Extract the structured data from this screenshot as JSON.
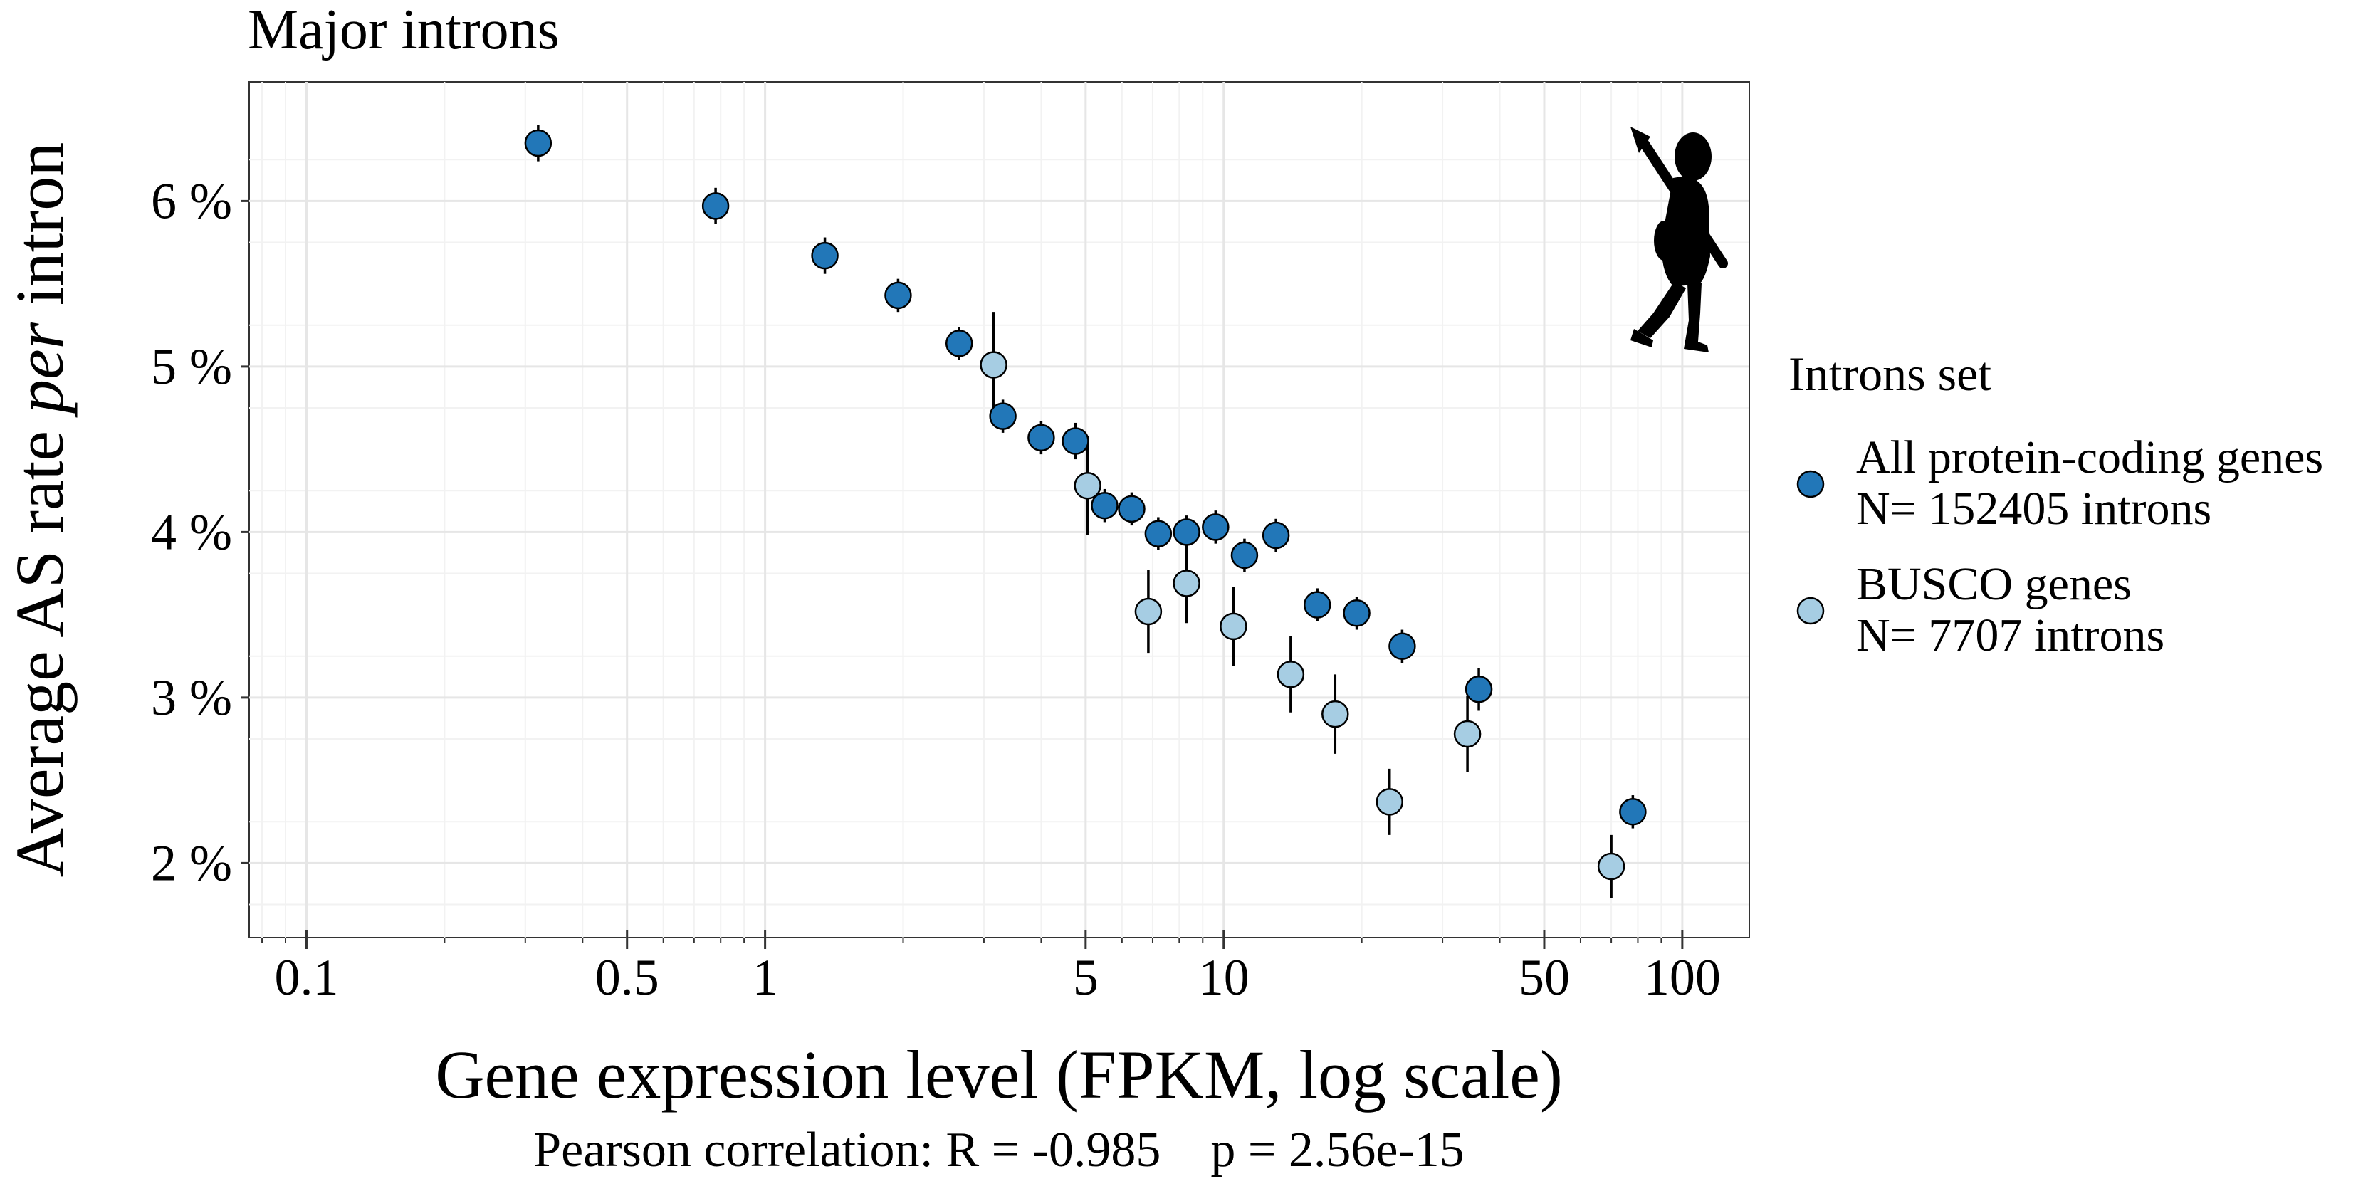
{
  "chart_data": {
    "type": "scatter",
    "title": "Major introns",
    "xlabel": "Gene expression level (FPKM, log scale)",
    "ylabel_parts": [
      "Average AS rate ",
      "per",
      " intron"
    ],
    "caption": "Pearson correlation: R = -0.985    p = 2.56e-15",
    "x_scale": "log10",
    "xlim": [
      0.075,
      140
    ],
    "ylim": [
      1.55,
      6.72
    ],
    "x_ticks": [
      {
        "value": 0.1,
        "label": "0.1"
      },
      {
        "value": 0.5,
        "label": "0.5"
      },
      {
        "value": 1,
        "label": "1"
      },
      {
        "value": 5,
        "label": "5"
      },
      {
        "value": 10,
        "label": "10"
      },
      {
        "value": 50,
        "label": "50"
      },
      {
        "value": 100,
        "label": "100"
      }
    ],
    "x_minor_ticks": [
      0.08,
      0.09,
      0.2,
      0.3,
      0.4,
      0.6,
      0.7,
      0.8,
      0.9,
      2,
      3,
      4,
      6,
      7,
      8,
      9,
      20,
      30,
      40,
      60,
      70,
      80,
      90
    ],
    "y_ticks": [
      {
        "value": 2,
        "label": "2 %"
      },
      {
        "value": 3,
        "label": "3 %"
      },
      {
        "value": 4,
        "label": "4 %"
      },
      {
        "value": 5,
        "label": "5 %"
      },
      {
        "value": 6,
        "label": "6 %"
      }
    ],
    "grid": true,
    "legend": {
      "title": "Introns set",
      "position": "right"
    },
    "series": [
      {
        "label_lines": [
          "All protein-coding genes",
          "N= 152405 introns"
        ],
        "color": "#2277b8",
        "points": [
          {
            "x": 0.32,
            "y": 6.35,
            "ylow": 6.24,
            "yhigh": 6.46
          },
          {
            "x": 0.78,
            "y": 5.97,
            "ylow": 5.86,
            "yhigh": 6.08
          },
          {
            "x": 1.35,
            "y": 5.67,
            "ylow": 5.56,
            "yhigh": 5.78
          },
          {
            "x": 1.95,
            "y": 5.43,
            "ylow": 5.33,
            "yhigh": 5.53
          },
          {
            "x": 2.65,
            "y": 5.14,
            "ylow": 5.04,
            "yhigh": 5.24
          },
          {
            "x": 3.3,
            "y": 4.7,
            "ylow": 4.6,
            "yhigh": 4.8
          },
          {
            "x": 4.0,
            "y": 4.57,
            "ylow": 4.47,
            "yhigh": 4.67
          },
          {
            "x": 4.75,
            "y": 4.55,
            "ylow": 4.44,
            "yhigh": 4.66
          },
          {
            "x": 5.5,
            "y": 4.16,
            "ylow": 4.06,
            "yhigh": 4.26
          },
          {
            "x": 6.3,
            "y": 4.14,
            "ylow": 4.04,
            "yhigh": 4.24
          },
          {
            "x": 7.2,
            "y": 3.99,
            "ylow": 3.89,
            "yhigh": 4.09
          },
          {
            "x": 8.3,
            "y": 4.0,
            "ylow": 3.9,
            "yhigh": 4.1
          },
          {
            "x": 9.6,
            "y": 4.03,
            "ylow": 3.93,
            "yhigh": 4.13
          },
          {
            "x": 11.1,
            "y": 3.86,
            "ylow": 3.76,
            "yhigh": 3.96
          },
          {
            "x": 13.0,
            "y": 3.98,
            "ylow": 3.88,
            "yhigh": 4.08
          },
          {
            "x": 16.0,
            "y": 3.56,
            "ylow": 3.46,
            "yhigh": 3.66
          },
          {
            "x": 19.5,
            "y": 3.51,
            "ylow": 3.41,
            "yhigh": 3.61
          },
          {
            "x": 24.5,
            "y": 3.31,
            "ylow": 3.21,
            "yhigh": 3.41
          },
          {
            "x": 36.0,
            "y": 3.05,
            "ylow": 2.92,
            "yhigh": 3.18
          },
          {
            "x": 78.0,
            "y": 2.31,
            "ylow": 2.21,
            "yhigh": 2.41
          }
        ]
      },
      {
        "label_lines": [
          "BUSCO genes",
          "N= 7707 introns"
        ],
        "color": "#a6cde3",
        "points": [
          {
            "x": 3.15,
            "y": 5.01,
            "ylow": 4.69,
            "yhigh": 5.33
          },
          {
            "x": 5.05,
            "y": 4.28,
            "ylow": 3.98,
            "yhigh": 4.58
          },
          {
            "x": 6.85,
            "y": 3.52,
            "ylow": 3.27,
            "yhigh": 3.77
          },
          {
            "x": 8.3,
            "y": 3.69,
            "ylow": 3.45,
            "yhigh": 3.93
          },
          {
            "x": 10.5,
            "y": 3.43,
            "ylow": 3.19,
            "yhigh": 3.67
          },
          {
            "x": 14.0,
            "y": 3.14,
            "ylow": 2.91,
            "yhigh": 3.37
          },
          {
            "x": 17.5,
            "y": 2.9,
            "ylow": 2.66,
            "yhigh": 3.14
          },
          {
            "x": 23.0,
            "y": 2.37,
            "ylow": 2.17,
            "yhigh": 2.57
          },
          {
            "x": 34.0,
            "y": 2.78,
            "ylow": 2.55,
            "yhigh": 3.01
          },
          {
            "x": 70.0,
            "y": 1.98,
            "ylow": 1.79,
            "yhigh": 2.17
          }
        ]
      }
    ],
    "annotation_icon": "human-silhouette-icon"
  }
}
